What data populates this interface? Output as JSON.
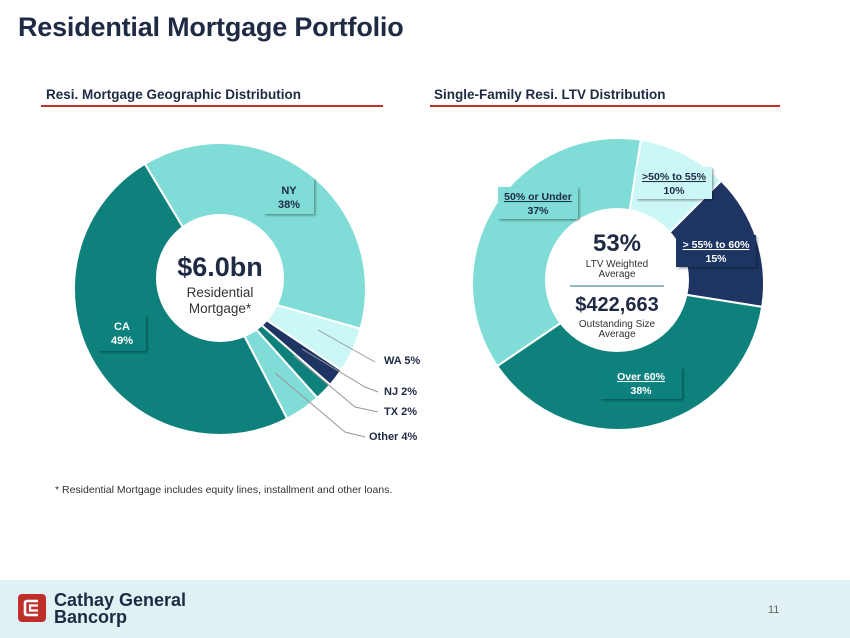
{
  "page": {
    "title": "Residential Mortgage Portfolio",
    "footnote": "* Residential Mortgage includes equity lines, installment and other loans.",
    "company_line1": "Cathay General",
    "company_line2": "Bancorp",
    "page_number": "11"
  },
  "colors": {
    "teal_dark": "#0f817d",
    "teal_light": "#7fdcd6",
    "cyan_pale": "#ccf7f7",
    "navy": "#1e3564",
    "red": "#c0302b",
    "text_dark": "#1f2a44"
  },
  "center_left": {
    "amount": "$6.0bn",
    "line1": "Residential",
    "line2": "Mortgage*"
  },
  "center_right": {
    "ltv_value": "53%",
    "ltv_label1": "LTV Weighted",
    "ltv_label2": "Average",
    "size_value": "$422,663",
    "size_label1": "Outstanding Size",
    "size_label2": "Average"
  },
  "chart_data": [
    {
      "type": "pie",
      "title": "Resi. Mortgage Geographic Distribution",
      "unit": "%",
      "slices": [
        {
          "label": "NY",
          "value": 38,
          "display": "38%"
        },
        {
          "label": "WA",
          "value": 5,
          "display": "5%"
        },
        {
          "label": "NJ",
          "value": 2,
          "display": "2%"
        },
        {
          "label": "TX",
          "value": 2,
          "display": "2%"
        },
        {
          "label": "Other",
          "value": 4,
          "display": "4%"
        },
        {
          "label": "CA",
          "value": 49,
          "display": "49%"
        }
      ]
    },
    {
      "type": "pie",
      "title": "Single-Family Resi. LTV Distribution",
      "unit": "%",
      "slices": [
        {
          "label": ">50% to 55%",
          "value": 10,
          "display": "10%"
        },
        {
          "label": "> 55% to 60%",
          "value": 15,
          "display": "15%"
        },
        {
          "label": "Over 60%",
          "value": 38,
          "display": "38%"
        },
        {
          "label": "50% or Under",
          "value": 37,
          "display": "37%"
        }
      ]
    }
  ]
}
